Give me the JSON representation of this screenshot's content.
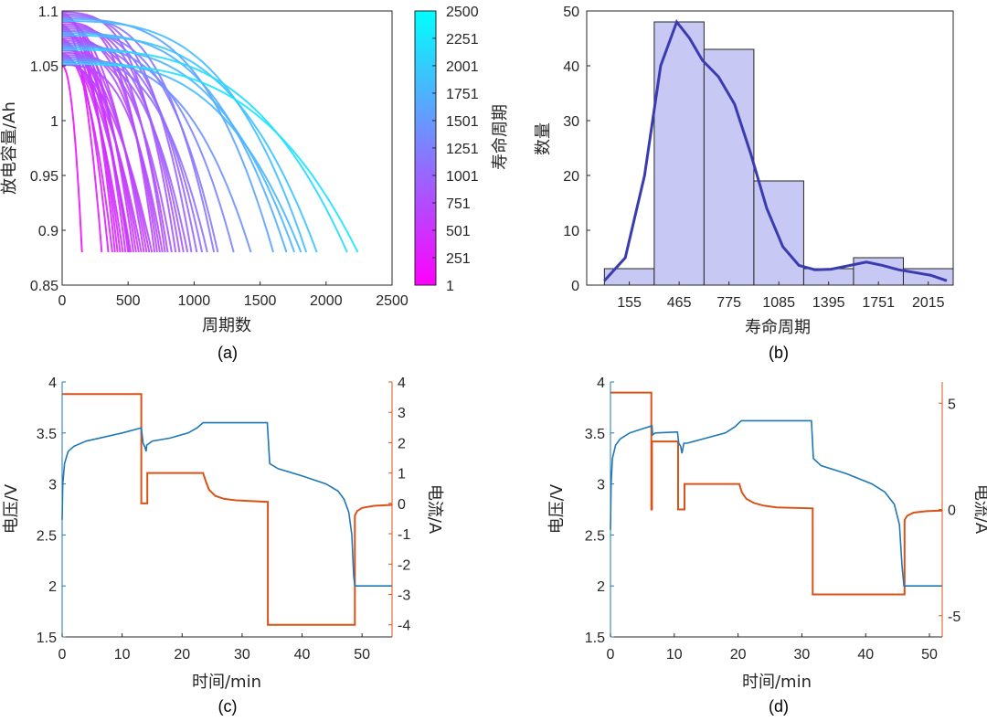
{
  "chart_data": [
    {
      "id": "a",
      "type": "line",
      "caption": "(a)",
      "xlabel": "周期数",
      "ylabel": "放电容量/Ah",
      "xlim": [
        0,
        2500
      ],
      "ylim": [
        0.85,
        1.1
      ],
      "xticks": [
        "0",
        "500",
        "1000",
        "1500",
        "2000",
        "2500"
      ],
      "yticks": [
        "0.85",
        "0.9",
        "0.95",
        "1",
        "1.05",
        "1.1"
      ],
      "colorbar": {
        "label": "寿命周期",
        "ticks": [
          "1",
          "251",
          "501",
          "751",
          "1001",
          "1251",
          "1501",
          "1751",
          "2001",
          "2251",
          "2500"
        ],
        "low_color": "#ff00ff",
        "high_color": "#00ffff"
      },
      "end_capacity": 0.88,
      "cycle_lives": [
        150,
        300,
        350,
        380,
        400,
        420,
        440,
        460,
        480,
        500,
        510,
        520,
        540,
        560,
        580,
        600,
        620,
        640,
        660,
        680,
        700,
        720,
        740,
        760,
        780,
        800,
        830,
        860,
        890,
        920,
        950,
        980,
        1020,
        1060,
        1100,
        1150,
        1180,
        1300,
        1430,
        1600,
        1700,
        1760,
        1810,
        1850,
        1930,
        2160,
        2240
      ]
    },
    {
      "id": "b",
      "type": "bar",
      "caption": "(b)",
      "xlabel": "寿命周期",
      "ylabel": "数量",
      "xlim": [
        -40,
        2240
      ],
      "ylim": [
        0,
        50
      ],
      "xticks": [
        "155",
        "465",
        "775",
        "1085",
        "1395",
        "1751",
        "2015"
      ],
      "yticks": [
        "0",
        "10",
        "20",
        "30",
        "40",
        "50"
      ],
      "bar_color": "#c8c8f5",
      "curve_color": "#3b3bb0",
      "bins": [
        {
          "from": 70,
          "to": 380,
          "value": 3
        },
        {
          "from": 380,
          "to": 690,
          "value": 48
        },
        {
          "from": 690,
          "to": 1000,
          "value": 43
        },
        {
          "from": 1000,
          "to": 1310,
          "value": 19
        },
        {
          "from": 1310,
          "to": 1620,
          "value": 3
        },
        {
          "from": 1620,
          "to": 1930,
          "value": 5
        },
        {
          "from": 1930,
          "to": 2240,
          "value": 3
        }
      ],
      "density_curve": [
        [
          70,
          0.8
        ],
        [
          200,
          5
        ],
        [
          320,
          20
        ],
        [
          420,
          40
        ],
        [
          520,
          48
        ],
        [
          600,
          45
        ],
        [
          680,
          41
        ],
        [
          780,
          38
        ],
        [
          880,
          33
        ],
        [
          980,
          24
        ],
        [
          1080,
          14
        ],
        [
          1180,
          7
        ],
        [
          1280,
          3.6
        ],
        [
          1380,
          2.8
        ],
        [
          1480,
          2.9
        ],
        [
          1600,
          3.6
        ],
        [
          1700,
          4.2
        ],
        [
          1800,
          3.6
        ],
        [
          1900,
          2.8
        ],
        [
          2000,
          2.3
        ],
        [
          2100,
          1.8
        ],
        [
          2200,
          0.8
        ]
      ]
    },
    {
      "id": "c",
      "type": "line",
      "caption": "(c)",
      "xlabel": "时间/min",
      "ylabel_left": "电压/V",
      "ylabel_right": "电流/A",
      "xlim": [
        0,
        55
      ],
      "ylim_left": [
        1.5,
        4
      ],
      "ylim_right": [
        -4.4,
        4
      ],
      "xticks": [
        "0",
        "10",
        "20",
        "30",
        "40",
        "50"
      ],
      "yticks_left": [
        "1.5",
        "2",
        "2.5",
        "3",
        "3.5",
        "4"
      ],
      "yticks_right": [
        "-4",
        "-3",
        "-2",
        "-1",
        "0",
        "1",
        "2",
        "3",
        "4"
      ],
      "voltage_color": "#1f77b4",
      "current_color": "#d95319",
      "series": [
        {
          "name": "电压",
          "axis": "left",
          "x": [
            0,
            0.1,
            0.4,
            1,
            2,
            4,
            7,
            10,
            13.2,
            13.5,
            13.8,
            14,
            14.1,
            15,
            18,
            21,
            22.5,
            23.5,
            25,
            30,
            34.2,
            34.6,
            36,
            40,
            44,
            46,
            47,
            47.8,
            48.3,
            48.6,
            48.8,
            49,
            55
          ],
          "y": [
            2.65,
            3.0,
            3.2,
            3.32,
            3.37,
            3.42,
            3.46,
            3.5,
            3.55,
            3.4,
            3.36,
            3.32,
            3.38,
            3.42,
            3.45,
            3.5,
            3.55,
            3.6,
            3.6,
            3.6,
            3.6,
            3.2,
            3.15,
            3.08,
            3.0,
            2.93,
            2.85,
            2.72,
            2.5,
            2.1,
            2.0,
            2.0,
            2.0
          ]
        },
        {
          "name": "电流",
          "axis": "right",
          "x": [
            0,
            13.2,
            13.2,
            14.2,
            14.2,
            23.5,
            24,
            24.5,
            25.5,
            27,
            29,
            34.3,
            34.3,
            48.8,
            48.8,
            49.2,
            50,
            52,
            55
          ],
          "y": [
            3.6,
            3.6,
            0,
            0,
            1,
            1,
            0.7,
            0.45,
            0.25,
            0.15,
            0.1,
            0.05,
            -4,
            -4,
            -0.4,
            -0.25,
            -0.15,
            -0.08,
            -0.05
          ]
        }
      ]
    },
    {
      "id": "d",
      "type": "line",
      "caption": "(d)",
      "xlabel": "时间/min",
      "ylabel_left": "电压/V",
      "ylabel_right": "电流/A",
      "xlim": [
        0,
        52
      ],
      "ylim_left": [
        1.5,
        4
      ],
      "ylim_right": [
        -6,
        6
      ],
      "xticks": [
        "0",
        "10",
        "20",
        "30",
        "40",
        "50"
      ],
      "yticks_left": [
        "1.5",
        "2",
        "2.5",
        "3",
        "3.5",
        "4"
      ],
      "yticks_right": [
        "-5",
        "0",
        "5"
      ],
      "voltage_color": "#1f77b4",
      "current_color": "#d95319",
      "series": [
        {
          "name": "电压",
          "axis": "left",
          "x": [
            0,
            0.1,
            0.3,
            0.8,
            1.5,
            3,
            5,
            6.5,
            6.6,
            7,
            10.5,
            10.7,
            11,
            11.2,
            11.5,
            12,
            15,
            18,
            19.5,
            20.5,
            25,
            31.5,
            31.8,
            33,
            37,
            41,
            43,
            44.5,
            45.3,
            45.7,
            46,
            46.2,
            52
          ],
          "y": [
            2.55,
            3.0,
            3.25,
            3.38,
            3.44,
            3.5,
            3.54,
            3.57,
            3.48,
            3.5,
            3.51,
            3.4,
            3.37,
            3.3,
            3.4,
            3.4,
            3.45,
            3.5,
            3.56,
            3.62,
            3.62,
            3.62,
            3.25,
            3.18,
            3.1,
            3.0,
            2.92,
            2.8,
            2.6,
            2.2,
            2.0,
            2.0,
            2.0
          ]
        },
        {
          "name": "电流",
          "axis": "right",
          "x": [
            0,
            6.4,
            6.4,
            6.5,
            6.5,
            10.6,
            10.6,
            11.6,
            11.6,
            20.2,
            20.6,
            21.3,
            22.5,
            24,
            26,
            31.7,
            31.7,
            46.1,
            46.1,
            46.5,
            47.5,
            49.5,
            52
          ],
          "y": [
            5.5,
            5.5,
            0,
            0,
            3.2,
            3.2,
            0,
            0,
            1.2,
            1.2,
            0.8,
            0.5,
            0.3,
            0.18,
            0.1,
            0.05,
            -4,
            -4,
            -0.5,
            -0.3,
            -0.15,
            -0.08,
            -0.05
          ]
        }
      ]
    }
  ]
}
